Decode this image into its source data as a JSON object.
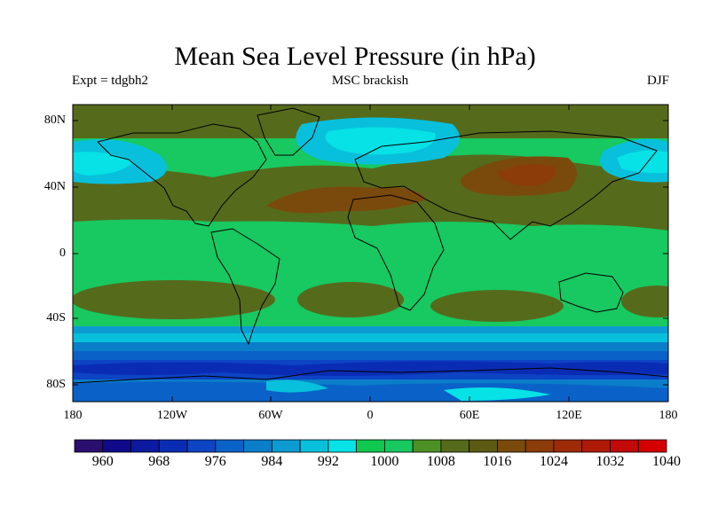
{
  "title": "Mean Sea Level Pressure (in hPa)",
  "subtitle_left": "Expt = tdgbh2",
  "subtitle_center": "MSC brackish",
  "subtitle_right": "DJF",
  "axes": {
    "lat_ticks": [
      "80N",
      "40N",
      "0",
      "40S",
      "80S"
    ],
    "lon_ticks": [
      "180",
      "120W",
      "60W",
      "0",
      "60E",
      "120E",
      "180"
    ]
  },
  "colorbar": {
    "labels": [
      "960",
      "968",
      "976",
      "984",
      "992",
      "1000",
      "1008",
      "1016",
      "1024",
      "1032",
      "1040"
    ],
    "colors": [
      "#2a0f6e",
      "#100a8a",
      "#0c1aa0",
      "#0a2cb4",
      "#0c44c4",
      "#0a62c8",
      "#0a7ec8",
      "#0c9cd2",
      "#08c0dc",
      "#06e2e6",
      "#10c850",
      "#18c860",
      "#4c9026",
      "#566a1c",
      "#5c5a14",
      "#7a4a0c",
      "#8c3c08",
      "#9e2a08",
      "#b01a08",
      "#c20a08",
      "#d40000"
    ]
  },
  "style": {
    "land_outline": "#000000",
    "ocean_bg": "#18c860"
  }
}
